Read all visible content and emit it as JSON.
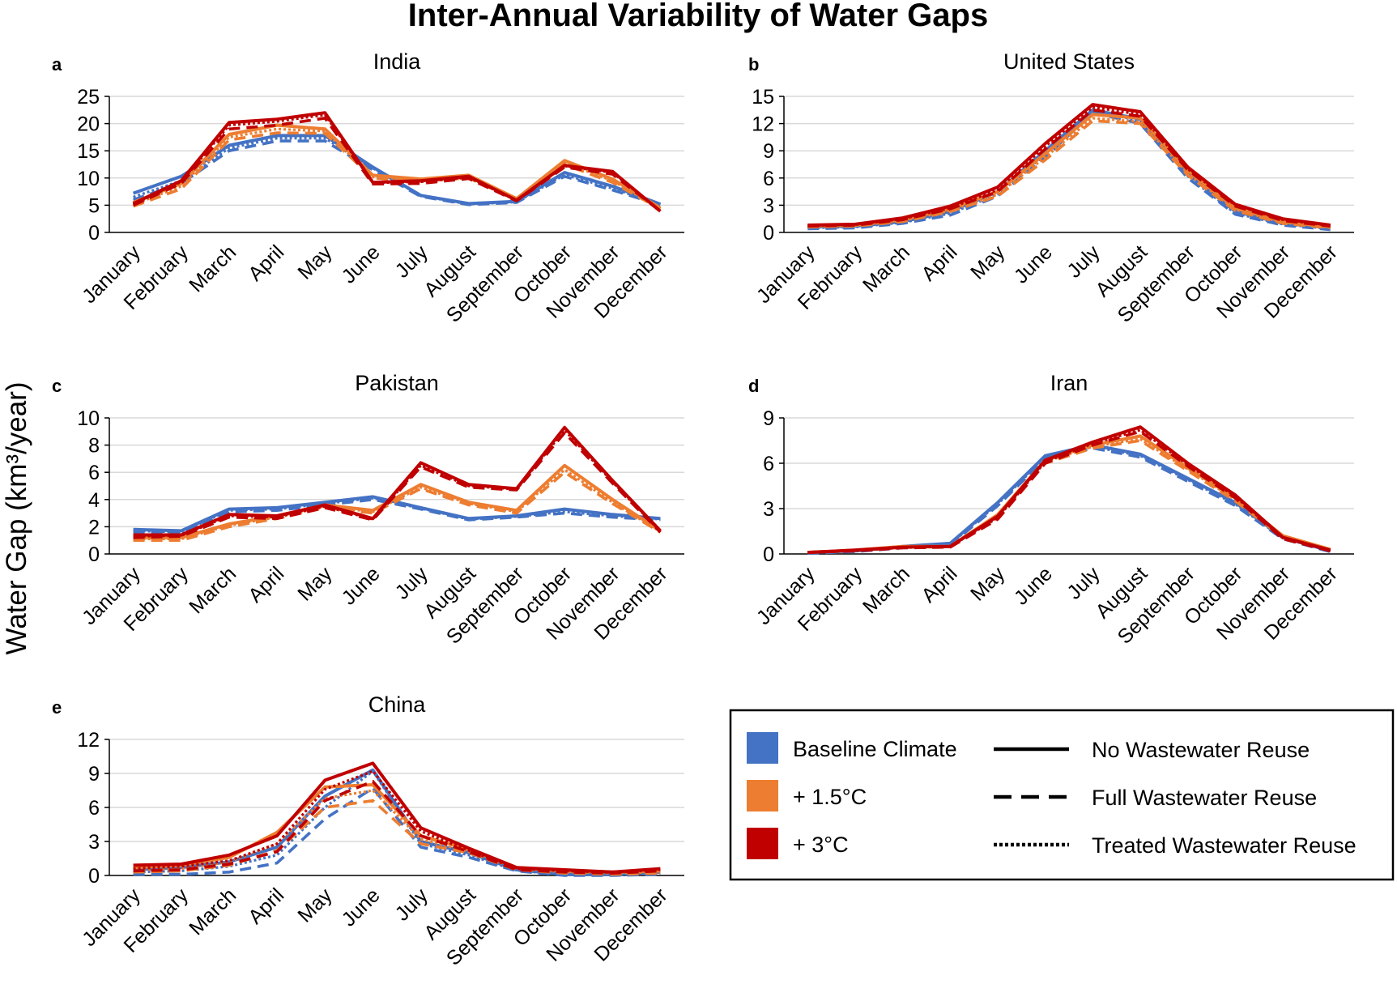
{
  "title": "Inter-Annual Variability of Water Gaps",
  "ylabel": "Water Gap (km³/year)",
  "legend": {
    "climates": [
      {
        "label": "Baseline Climate",
        "color": "#4472C4"
      },
      {
        "label": "+ 1.5°C",
        "color": "#ED7D31"
      },
      {
        "label": "+ 3°C",
        "color": "#C00000"
      }
    ],
    "reuse": [
      {
        "label": "No Wastewater Reuse",
        "style": "solid"
      },
      {
        "label": "Full Wastewater Reuse",
        "style": "dashed"
      },
      {
        "label": "Treated Wastewater Reuse",
        "style": "dotted"
      }
    ]
  },
  "chart_data": [
    {
      "type": "line",
      "panel_label": "a",
      "title": "India",
      "ylim": [
        0,
        25
      ],
      "yticks": [
        "0",
        "5",
        "10",
        "15",
        "20",
        "25"
      ],
      "grid": true,
      "categories": [
        "January",
        "February",
        "March",
        "April",
        "May",
        "June",
        "July",
        "August",
        "September",
        "October",
        "November",
        "December"
      ],
      "series": [
        {
          "climate": "Baseline Climate",
          "reuse": "No Wastewater Reuse",
          "values": [
            7.2,
            10.3,
            16,
            17.8,
            17.8,
            12,
            6.8,
            5.3,
            5.7,
            11,
            8.5,
            5.2
          ]
        },
        {
          "climate": "Baseline Climate",
          "reuse": "Full Wastewater Reuse",
          "values": [
            6,
            9,
            15,
            16.8,
            16.8,
            11.5,
            6.6,
            5.1,
            5.5,
            10.3,
            7.8,
            5
          ]
        },
        {
          "climate": "Baseline Climate",
          "reuse": "Treated Wastewater Reuse",
          "values": [
            6.5,
            9.5,
            15.5,
            17.3,
            17.3,
            11.8,
            6.7,
            5.2,
            5.6,
            10.6,
            8.1,
            5.1
          ]
        },
        {
          "climate": "+ 1.5°C",
          "reuse": "No Wastewater Reuse",
          "values": [
            5.5,
            9,
            18,
            19.7,
            19,
            10.5,
            9.8,
            10.5,
            6.2,
            13.2,
            9.8,
            4.5
          ]
        },
        {
          "climate": "+ 1.5°C",
          "reuse": "Full Wastewater Reuse",
          "values": [
            4.8,
            8,
            17,
            18.3,
            18.2,
            10,
            9.4,
            10,
            6,
            12.5,
            9.2,
            4.3
          ]
        },
        {
          "climate": "+ 1.5°C",
          "reuse": "Treated Wastewater Reuse",
          "values": [
            5.1,
            8.5,
            17.5,
            19,
            18.6,
            10.2,
            9.6,
            10.2,
            6.1,
            12.8,
            9.5,
            4.4
          ]
        },
        {
          "climate": "+ 3°C",
          "reuse": "No Wastewater Reuse",
          "values": [
            5.3,
            9.5,
            20.2,
            20.8,
            22,
            9.2,
            9.5,
            10.3,
            5.9,
            12.3,
            11.2,
            3.9
          ]
        },
        {
          "climate": "+ 3°C",
          "reuse": "Full Wastewater Reuse",
          "values": [
            5,
            9,
            19,
            19.7,
            21,
            8.9,
            9,
            9.9,
            5.8,
            12,
            10.7,
            3.9
          ]
        },
        {
          "climate": "+ 3°C",
          "reuse": "Treated Wastewater Reuse",
          "values": [
            5.2,
            9.3,
            19.7,
            20.4,
            21.6,
            9.1,
            9.3,
            10.1,
            5.9,
            12.2,
            11,
            3.9
          ]
        }
      ]
    },
    {
      "type": "line",
      "panel_label": "b",
      "title": "United States",
      "ylim": [
        0,
        15
      ],
      "yticks": [
        "0",
        "3",
        "6",
        "9",
        "12",
        "15"
      ],
      "grid": true,
      "categories": [
        "January",
        "February",
        "March",
        "April",
        "May",
        "June",
        "July",
        "August",
        "September",
        "October",
        "November",
        "December"
      ],
      "series": [
        {
          "climate": "Baseline Climate",
          "reuse": "No Wastewater Reuse",
          "values": [
            0.6,
            0.7,
            1.2,
            2.3,
            4.5,
            9,
            13.5,
            12.5,
            6.5,
            2.3,
            1,
            0.5
          ]
        },
        {
          "climate": "Baseline Climate",
          "reuse": "Full Wastewater Reuse",
          "values": [
            0.4,
            0.5,
            1,
            1.9,
            4,
            8.3,
            13.2,
            12,
            6,
            2,
            0.8,
            0.3
          ]
        },
        {
          "climate": "Baseline Climate",
          "reuse": "Treated Wastewater Reuse",
          "values": [
            0.5,
            0.6,
            1.1,
            2.1,
            4.2,
            8.6,
            13.4,
            12.3,
            6.2,
            2.1,
            0.9,
            0.4
          ]
        },
        {
          "climate": "+ 1.5°C",
          "reuse": "No Wastewater Reuse",
          "values": [
            0.7,
            0.8,
            1.4,
            2.6,
            4.5,
            8.7,
            13,
            12.6,
            6.8,
            2.7,
            1.2,
            0.6
          ]
        },
        {
          "climate": "+ 1.5°C",
          "reuse": "Full Wastewater Reuse",
          "values": [
            0.6,
            0.7,
            1.2,
            2.3,
            4,
            8,
            12.3,
            12,
            6.3,
            2.4,
            1,
            0.5
          ]
        },
        {
          "climate": "+ 1.5°C",
          "reuse": "Treated Wastewater Reuse",
          "values": [
            0.65,
            0.75,
            1.3,
            2.4,
            4.2,
            8.3,
            12.6,
            12.2,
            6.5,
            2.5,
            1.1,
            0.55
          ]
        },
        {
          "climate": "+ 3°C",
          "reuse": "No Wastewater Reuse",
          "values": [
            0.8,
            0.9,
            1.6,
            2.9,
            5,
            9.8,
            14.1,
            13.3,
            7.2,
            3.1,
            1.5,
            0.8
          ]
        },
        {
          "climate": "+ 3°C",
          "reuse": "Full Wastewater Reuse",
          "values": [
            0.7,
            0.8,
            1.4,
            2.6,
            4.5,
            9.2,
            13.5,
            12.8,
            6.9,
            2.9,
            1.3,
            0.7
          ]
        },
        {
          "climate": "+ 3°C",
          "reuse": "Treated Wastewater Reuse",
          "values": [
            0.75,
            0.85,
            1.5,
            2.7,
            4.7,
            9.5,
            13.8,
            13,
            7,
            3,
            1.4,
            0.75
          ]
        }
      ]
    },
    {
      "type": "line",
      "panel_label": "c",
      "title": "Pakistan",
      "ylim": [
        0,
        10
      ],
      "yticks": [
        "0",
        "2",
        "4",
        "6",
        "8",
        "10"
      ],
      "grid": true,
      "categories": [
        "January",
        "February",
        "March",
        "April",
        "May",
        "June",
        "July",
        "August",
        "September",
        "October",
        "November",
        "December"
      ],
      "series": [
        {
          "climate": "Baseline Climate",
          "reuse": "No Wastewater Reuse",
          "values": [
            1.8,
            1.7,
            3.3,
            3.4,
            3.8,
            4.2,
            3.4,
            2.6,
            2.8,
            3.3,
            2.9,
            2.6
          ]
        },
        {
          "climate": "Baseline Climate",
          "reuse": "Full Wastewater Reuse",
          "values": [
            1.6,
            1.5,
            3.1,
            3.2,
            3.6,
            4.0,
            3.3,
            2.5,
            2.7,
            3.0,
            2.7,
            2.5
          ]
        },
        {
          "climate": "Baseline Climate",
          "reuse": "Treated Wastewater Reuse",
          "values": [
            1.7,
            1.6,
            3.2,
            3.3,
            3.7,
            4.1,
            3.35,
            2.55,
            2.75,
            3.1,
            2.8,
            2.55
          ]
        },
        {
          "climate": "+ 1.5°C",
          "reuse": "No Wastewater Reuse",
          "values": [
            1.2,
            1.2,
            2.2,
            2.8,
            3.6,
            3.2,
            5.1,
            3.8,
            3.2,
            6.5,
            4.0,
            1.7
          ]
        },
        {
          "climate": "+ 1.5°C",
          "reuse": "Full Wastewater Reuse",
          "values": [
            1.0,
            1.0,
            2.0,
            2.6,
            3.4,
            3.0,
            4.8,
            3.6,
            3.0,
            6.0,
            3.7,
            1.6
          ]
        },
        {
          "climate": "+ 1.5°C",
          "reuse": "Treated Wastewater Reuse",
          "values": [
            1.1,
            1.1,
            2.1,
            2.7,
            3.5,
            3.1,
            4.9,
            3.7,
            3.1,
            6.2,
            3.8,
            1.65
          ]
        },
        {
          "climate": "+ 3°C",
          "reuse": "No Wastewater Reuse",
          "values": [
            1.4,
            1.4,
            2.9,
            2.8,
            3.6,
            2.6,
            6.7,
            5.1,
            4.8,
            9.3,
            5.4,
            1.7
          ]
        },
        {
          "climate": "+ 3°C",
          "reuse": "Full Wastewater Reuse",
          "values": [
            1.2,
            1.3,
            2.7,
            2.6,
            3.4,
            2.5,
            6.4,
            4.9,
            4.7,
            8.9,
            5.2,
            1.6
          ]
        },
        {
          "climate": "+ 3°C",
          "reuse": "Treated Wastewater Reuse",
          "values": [
            1.3,
            1.35,
            2.8,
            2.7,
            3.5,
            2.55,
            6.5,
            5,
            4.75,
            9.1,
            5.3,
            1.65
          ]
        }
      ]
    },
    {
      "type": "line",
      "panel_label": "d",
      "title": "Iran",
      "ylim": [
        0,
        9
      ],
      "yticks": [
        "0",
        "3",
        "6",
        "9"
      ],
      "grid": true,
      "categories": [
        "January",
        "February",
        "March",
        "April",
        "May",
        "June",
        "July",
        "August",
        "September",
        "October",
        "November",
        "December"
      ],
      "series": [
        {
          "climate": "Baseline Climate",
          "reuse": "No Wastewater Reuse",
          "values": [
            0.1,
            0.2,
            0.5,
            0.7,
            3.4,
            6.5,
            7.2,
            6.6,
            5.0,
            3.4,
            1.1,
            0.2
          ]
        },
        {
          "climate": "Baseline Climate",
          "reuse": "Full Wastewater Reuse",
          "values": [
            0.05,
            0.15,
            0.4,
            0.6,
            3.2,
            6.3,
            7.0,
            6.4,
            4.8,
            3.2,
            1.0,
            0.15
          ]
        },
        {
          "climate": "Baseline Climate",
          "reuse": "Treated Wastewater Reuse",
          "values": [
            0.08,
            0.18,
            0.45,
            0.65,
            3.3,
            6.4,
            7.1,
            6.5,
            4.9,
            3.3,
            1.05,
            0.18
          ]
        },
        {
          "climate": "+ 1.5°C",
          "reuse": "No Wastewater Reuse",
          "values": [
            0.1,
            0.25,
            0.5,
            0.5,
            2.6,
            6.2,
            7.2,
            7.8,
            5.7,
            3.7,
            1.2,
            0.3
          ]
        },
        {
          "climate": "+ 1.5°C",
          "reuse": "Full Wastewater Reuse",
          "values": [
            0.1,
            0.2,
            0.45,
            0.45,
            2.4,
            6.0,
            7.0,
            7.5,
            5.5,
            3.5,
            1.1,
            0.25
          ]
        },
        {
          "climate": "+ 1.5°C",
          "reuse": "Treated Wastewater Reuse",
          "values": [
            0.1,
            0.22,
            0.48,
            0.48,
            2.5,
            6.1,
            7.1,
            7.6,
            5.6,
            3.6,
            1.15,
            0.28
          ]
        },
        {
          "climate": "+ 3°C",
          "reuse": "No Wastewater Reuse",
          "values": [
            0.1,
            0.25,
            0.45,
            0.5,
            2.5,
            6.2,
            7.4,
            8.4,
            6.0,
            3.9,
            1.1,
            0.25
          ]
        },
        {
          "climate": "+ 3°C",
          "reuse": "Full Wastewater Reuse",
          "values": [
            0.1,
            0.2,
            0.4,
            0.45,
            2.3,
            6.0,
            7.2,
            8.1,
            5.8,
            3.7,
            1.0,
            0.2
          ]
        },
        {
          "climate": "+ 3°C",
          "reuse": "Treated Wastewater Reuse",
          "values": [
            0.1,
            0.22,
            0.42,
            0.48,
            2.4,
            6.1,
            7.3,
            8.2,
            5.9,
            3.8,
            1.05,
            0.22
          ]
        }
      ]
    },
    {
      "type": "line",
      "panel_label": "e",
      "title": "China",
      "ylim": [
        0,
        12
      ],
      "yticks": [
        "0",
        "3",
        "6",
        "9",
        "12"
      ],
      "grid": true,
      "categories": [
        "January",
        "February",
        "March",
        "April",
        "May",
        "June",
        "July",
        "August",
        "September",
        "October",
        "November",
        "December"
      ],
      "series": [
        {
          "climate": "Baseline Climate",
          "reuse": "No Wastewater Reuse",
          "values": [
            0.5,
            0.7,
            1.2,
            2.5,
            7,
            9.3,
            3,
            2.0,
            0.5,
            0.1,
            0.1,
            0.3
          ]
        },
        {
          "climate": "Baseline Climate",
          "reuse": "Full Wastewater Reuse",
          "values": [
            0.1,
            0.1,
            0.3,
            1.1,
            5,
            7.7,
            2.5,
            1.6,
            0.4,
            0.0,
            0.0,
            0.1
          ]
        },
        {
          "climate": "Baseline Climate",
          "reuse": "Treated Wastewater Reuse",
          "values": [
            0.3,
            0.4,
            0.8,
            1.8,
            6,
            9.2,
            2.8,
            1.8,
            0.45,
            0.05,
            0.05,
            0.2
          ]
        },
        {
          "climate": "+ 1.5°C",
          "reuse": "No Wastewater Reuse",
          "values": [
            0.7,
            0.9,
            1.6,
            3.8,
            7.8,
            8.0,
            3.5,
            2.3,
            0.7,
            0.4,
            0.3,
            0.4
          ]
        },
        {
          "climate": "+ 1.5°C",
          "reuse": "Full Wastewater Reuse",
          "values": [
            0.3,
            0.4,
            0.9,
            2.2,
            6,
            6.6,
            2.8,
            2.0,
            0.5,
            0.2,
            0.1,
            0.2
          ]
        },
        {
          "climate": "+ 1.5°C",
          "reuse": "Treated Wastewater Reuse",
          "values": [
            0.5,
            0.6,
            1.2,
            2.8,
            6.8,
            7.5,
            3.2,
            2.1,
            0.6,
            0.3,
            0.2,
            0.3
          ]
        },
        {
          "climate": "+ 3°C",
          "reuse": "No Wastewater Reuse",
          "values": [
            0.9,
            1.0,
            1.8,
            3.5,
            8.4,
            9.9,
            4.2,
            2.4,
            0.7,
            0.5,
            0.3,
            0.6
          ]
        },
        {
          "climate": "+ 3°C",
          "reuse": "Full Wastewater Reuse",
          "values": [
            0.4,
            0.5,
            1.0,
            2.1,
            6.6,
            8.3,
            3.5,
            2.1,
            0.5,
            0.3,
            0.2,
            0.4
          ]
        },
        {
          "climate": "+ 3°C",
          "reuse": "Treated Wastewater Reuse",
          "values": [
            0.6,
            0.8,
            1.3,
            2.8,
            7.6,
            9.2,
            3.9,
            2.2,
            0.6,
            0.4,
            0.25,
            0.5
          ]
        }
      ]
    }
  ]
}
